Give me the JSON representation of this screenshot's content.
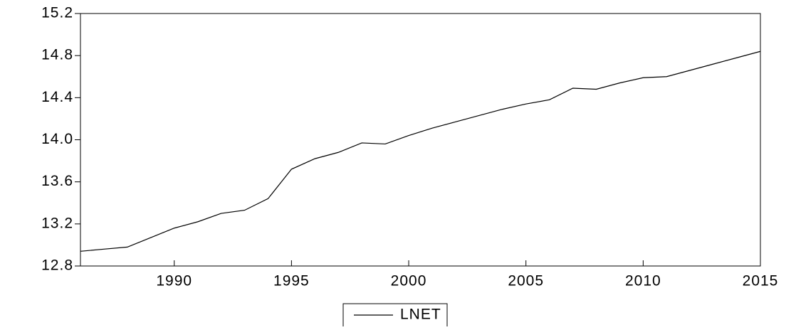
{
  "chart_data": {
    "type": "line",
    "x": [
      1986,
      1987,
      1988,
      1989,
      1990,
      1991,
      1992,
      1993,
      1994,
      1995,
      1996,
      1997,
      1998,
      1999,
      2000,
      2001,
      2002,
      2003,
      2004,
      2005,
      2006,
      2007,
      2008,
      2009,
      2010,
      2011,
      2012,
      2013,
      2014,
      2015
    ],
    "series": [
      {
        "name": "LNET",
        "color": "#000000",
        "values": [
          12.94,
          12.96,
          12.98,
          13.07,
          13.16,
          13.22,
          13.3,
          13.33,
          13.44,
          13.72,
          13.82,
          13.88,
          13.97,
          13.96,
          14.04,
          14.11,
          14.17,
          14.23,
          14.29,
          14.34,
          14.38,
          14.49,
          14.48,
          14.54,
          14.59,
          14.6,
          14.66,
          14.72,
          14.78,
          14.84
        ]
      }
    ],
    "xlim": [
      1986,
      2015
    ],
    "xticks": [
      1990,
      1995,
      2000,
      2005,
      2010,
      2015
    ],
    "ylim": [
      12.8,
      15.2
    ],
    "yticks": [
      12.8,
      13.2,
      13.6,
      {
        "value": 14,
        "label": "14.0"
      },
      14.4,
      14.8,
      15.2
    ],
    "grid": false,
    "legend": "bottom"
  }
}
